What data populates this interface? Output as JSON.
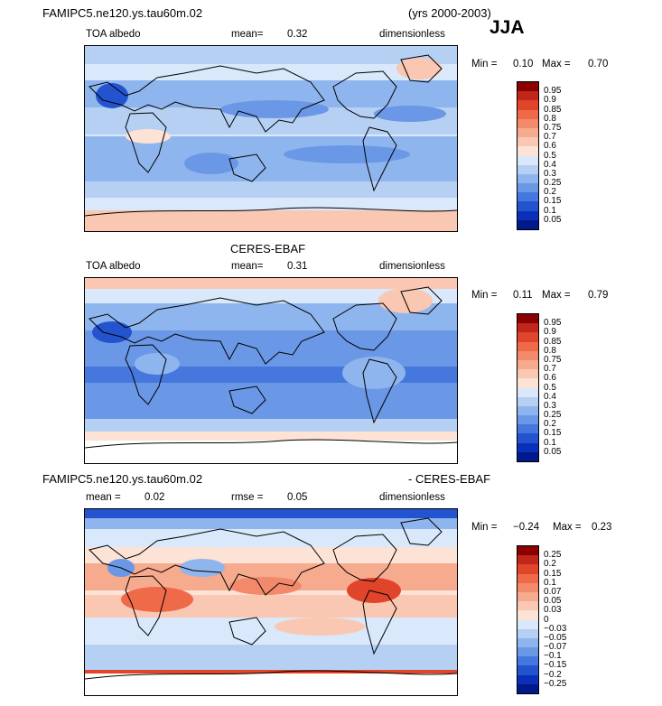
{
  "header": {
    "model_name": "FAMIPC5.ne120.ys.tau60m.02",
    "years": "(yrs 2000-2003)",
    "season": "JJA"
  },
  "panel1": {
    "variable": "TOA albedo",
    "mean_label": "mean=",
    "mean_value": "0.32",
    "units": "dimensionless",
    "min_label": "Min =",
    "min_value": "0.10",
    "max_label": "Max =",
    "max_value": "0.70"
  },
  "panel2": {
    "title": "CERES-EBAF",
    "variable": "TOA albedo",
    "mean_label": "mean=",
    "mean_value": "0.31",
    "units": "dimensionless",
    "min_label": "Min =",
    "min_value": "0.11",
    "max_label": "Max =",
    "max_value": "0.79"
  },
  "panel3": {
    "title_left": "FAMIPC5.ne120.ys.tau60m.02",
    "title_right": "- CERES-EBAF",
    "mean_label": "mean =",
    "mean_value": "0.02",
    "rmse_label": "rmse =",
    "rmse_value": "0.05",
    "units": "dimensionless",
    "min_label": "Min =",
    "min_value": "−0.24",
    "max_label": "Max =",
    "max_value": "0.23"
  },
  "colorbar_albedo": {
    "labels": [
      "0.95",
      "0.9",
      "0.85",
      "0.8",
      "0.75",
      "0.7",
      "0.6",
      "0.5",
      "0.4",
      "0.3",
      "0.25",
      "0.2",
      "0.15",
      "0.1",
      "0.05"
    ],
    "colors": [
      "#8b0000",
      "#c0261a",
      "#e0442a",
      "#ee6a48",
      "#f2896a",
      "#f6aa8e",
      "#fac7b3",
      "#fde2d6",
      "#d9e9fb",
      "#b6d0f4",
      "#8fb5ee",
      "#6a98e6",
      "#4577dc",
      "#2453cf",
      "#0a2fb8",
      "#001a8c"
    ]
  },
  "colorbar_diff": {
    "labels": [
      "0.25",
      "0.2",
      "0.15",
      "0.1",
      "0.07",
      "0.05",
      "0.03",
      "0",
      "−0.03",
      "−0.05",
      "−0.07",
      "−0.1",
      "−0.15",
      "−0.2",
      "−0.25"
    ],
    "colors": [
      "#8b0000",
      "#c0261a",
      "#e0442a",
      "#ee6a48",
      "#f2896a",
      "#f6aa8e",
      "#fac7b3",
      "#fde2d6",
      "#d9e9fb",
      "#b6d0f4",
      "#8fb5ee",
      "#6a98e6",
      "#4577dc",
      "#2453cf",
      "#0a2fb8",
      "#001a8c"
    ]
  }
}
